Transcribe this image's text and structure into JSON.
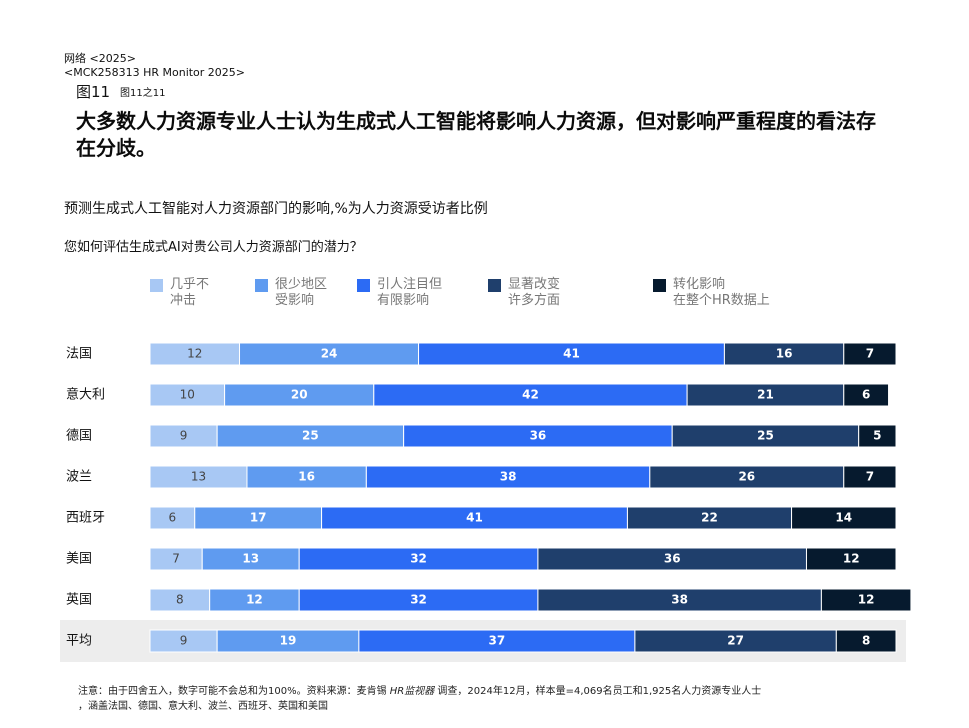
{
  "header": {
    "line1": "网络 <2025>",
    "line2": "<MCK258313 HR Monitor 2025>",
    "figure": "图11",
    "figure_sub": "图11之11"
  },
  "chart_data": {
    "type": "stacked-bar-horizontal",
    "title": "大多数人力资源专业人士认为生成式人工智能将影响人力资源，但对影响严重程度的看法存在分歧。",
    "subtitle": "预测生成式人工智能对人力资源部门的影响,%为人力资源受访者比例",
    "question": "您如何评估生成式AI对贵公司人力资源部门的潜力？",
    "categories": [
      "法国",
      "意大利",
      "德国",
      "波兰",
      "西班牙",
      "美国",
      "英国",
      "平均"
    ],
    "xlim": [
      0,
      100
    ],
    "series": [
      {
        "name": "几乎不\n冲击",
        "color": "#a8c8f4",
        "values": [
          12,
          10,
          9,
          13,
          6,
          7,
          8,
          9
        ]
      },
      {
        "name": "很少地区\n受影响",
        "color": "#5f9bf0",
        "values": [
          24,
          20,
          25,
          16,
          17,
          13,
          12,
          19
        ]
      },
      {
        "name": "引人注目但\n有限影响",
        "color": "#2c6bf4",
        "values": [
          41,
          42,
          36,
          38,
          41,
          32,
          32,
          37
        ]
      },
      {
        "name": "显著改变\n许多方面",
        "color": "#1f3f6c",
        "values": [
          16,
          21,
          25,
          26,
          22,
          36,
          38,
          27
        ]
      },
      {
        "name": "转化影响\n在整个HR数据上",
        "color": "#061a2e",
        "values": [
          7,
          6,
          5,
          7,
          14,
          12,
          12,
          8
        ]
      }
    ],
    "footnote": [
      "注意：由于四舍五入，数字可能不会总和为100%。资料来源：麦肯锡 ",
      "HR监视器",
      " 调查，2024年12月，样本量=4,069名员工和1,925名人力资源专业人士",
      "，涵盖法国、德国、意大利、波兰、西班牙、英国和美国"
    ]
  }
}
